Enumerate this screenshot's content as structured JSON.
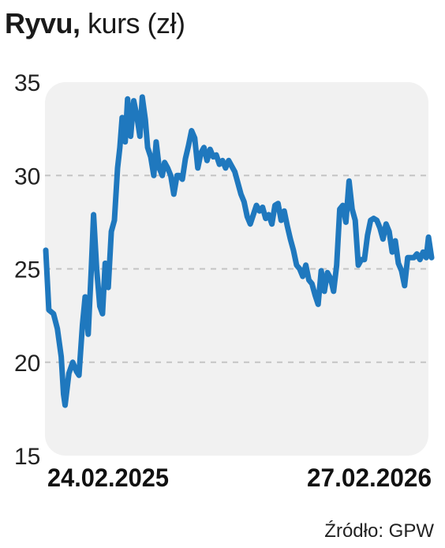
{
  "header": {
    "title_bold": "Ryvu,",
    "title_rest": " kurs (zł)"
  },
  "footer": {
    "source": "Źródło: GPW"
  },
  "colors": {
    "line": "#1f78be",
    "panel": "#f1f1f1",
    "grid": "#c4c4c4"
  },
  "chart_data": {
    "type": "line",
    "title": "Ryvu, kurs (zł)",
    "xlabel": "",
    "ylabel": "",
    "ylim": [
      15,
      35
    ],
    "yticks": [
      15,
      20,
      25,
      30,
      35
    ],
    "x_tick_labels": [
      "24.02.2025",
      "27.02.2026"
    ],
    "x_range": [
      0,
      100
    ],
    "grid": "horizontal dashed",
    "series": [
      {
        "values": [
          [
            0.0,
            26.0
          ],
          [
            0.8,
            22.8
          ],
          [
            2.0,
            22.6
          ],
          [
            3.0,
            21.8
          ],
          [
            4.0,
            20.3
          ],
          [
            4.6,
            18.3
          ],
          [
            5.0,
            17.7
          ],
          [
            6.0,
            19.4
          ],
          [
            7.0,
            20.0
          ],
          [
            8.0,
            19.5
          ],
          [
            8.6,
            19.3
          ],
          [
            9.5,
            22.0
          ],
          [
            10.2,
            23.5
          ],
          [
            11.0,
            21.5
          ],
          [
            11.8,
            25.0
          ],
          [
            12.4,
            27.9
          ],
          [
            13.2,
            25.0
          ],
          [
            14.0,
            23.0
          ],
          [
            14.7,
            22.6
          ],
          [
            15.4,
            25.3
          ],
          [
            16.2,
            24.0
          ],
          [
            17.0,
            27.0
          ],
          [
            17.8,
            27.6
          ],
          [
            18.6,
            30.4
          ],
          [
            19.2,
            31.5
          ],
          [
            19.8,
            33.1
          ],
          [
            20.6,
            31.8
          ],
          [
            21.2,
            34.1
          ],
          [
            22.0,
            32.1
          ],
          [
            22.8,
            34.0
          ],
          [
            23.6,
            33.2
          ],
          [
            24.4,
            32.1
          ],
          [
            25.0,
            34.2
          ],
          [
            25.8,
            33.0
          ],
          [
            26.4,
            31.5
          ],
          [
            27.2,
            31.0
          ],
          [
            28.0,
            30.0
          ],
          [
            28.6,
            31.8
          ],
          [
            29.4,
            30.4
          ],
          [
            30.2,
            30.0
          ],
          [
            30.8,
            30.7
          ],
          [
            31.6,
            30.4
          ],
          [
            32.4,
            30.0
          ],
          [
            33.2,
            29.0
          ],
          [
            34.0,
            30.0
          ],
          [
            34.6,
            30.0
          ],
          [
            35.4,
            29.8
          ],
          [
            36.2,
            30.9
          ],
          [
            37.0,
            31.6
          ],
          [
            37.8,
            32.4
          ],
          [
            38.6,
            32.0
          ],
          [
            39.4,
            30.4
          ],
          [
            40.2,
            31.2
          ],
          [
            41.0,
            31.5
          ],
          [
            41.8,
            30.8
          ],
          [
            42.6,
            31.4
          ],
          [
            43.4,
            31.0
          ],
          [
            44.2,
            31.1
          ],
          [
            45.0,
            30.6
          ],
          [
            45.8,
            30.8
          ],
          [
            46.6,
            30.4
          ],
          [
            47.4,
            30.8
          ],
          [
            48.2,
            30.5
          ],
          [
            49.0,
            30.2
          ],
          [
            49.8,
            29.6
          ],
          [
            50.6,
            29.0
          ],
          [
            51.4,
            28.6
          ],
          [
            52.2,
            27.8
          ],
          [
            53.0,
            27.4
          ],
          [
            53.8,
            27.9
          ],
          [
            54.6,
            28.4
          ],
          [
            55.4,
            28.1
          ],
          [
            56.2,
            28.3
          ],
          [
            57.0,
            27.7
          ],
          [
            57.8,
            27.9
          ],
          [
            58.6,
            27.4
          ],
          [
            59.4,
            28.4
          ],
          [
            60.2,
            28.5
          ],
          [
            61.0,
            27.6
          ],
          [
            61.8,
            28.1
          ],
          [
            62.6,
            27.3
          ],
          [
            63.4,
            26.6
          ],
          [
            64.2,
            26.0
          ],
          [
            65.0,
            25.2
          ],
          [
            65.8,
            25.0
          ],
          [
            66.6,
            24.6
          ],
          [
            67.4,
            25.2
          ],
          [
            68.2,
            24.4
          ],
          [
            69.0,
            24.2
          ],
          [
            69.8,
            23.6
          ],
          [
            70.6,
            23.1
          ],
          [
            71.4,
            24.9
          ],
          [
            72.2,
            23.8
          ],
          [
            73.0,
            24.8
          ],
          [
            73.8,
            24.5
          ],
          [
            74.6,
            23.8
          ],
          [
            75.4,
            25.2
          ],
          [
            76.2,
            28.2
          ],
          [
            77.0,
            28.4
          ],
          [
            77.8,
            27.5
          ],
          [
            78.6,
            29.7
          ],
          [
            79.4,
            28.2
          ],
          [
            80.2,
            27.6
          ],
          [
            81.0,
            25.2
          ],
          [
            81.8,
            25.5
          ],
          [
            82.6,
            25.5
          ],
          [
            83.4,
            26.8
          ],
          [
            84.2,
            27.6
          ],
          [
            85.0,
            27.7
          ],
          [
            85.8,
            27.6
          ],
          [
            86.6,
            27.2
          ],
          [
            87.4,
            26.6
          ],
          [
            88.2,
            27.4
          ],
          [
            89.0,
            27.0
          ],
          [
            89.8,
            25.9
          ],
          [
            90.6,
            26.5
          ],
          [
            91.4,
            25.3
          ],
          [
            92.2,
            24.9
          ],
          [
            93.0,
            24.1
          ],
          [
            93.8,
            25.6
          ],
          [
            94.6,
            25.6
          ],
          [
            95.4,
            25.6
          ],
          [
            96.2,
            25.8
          ],
          [
            97.0,
            25.5
          ],
          [
            97.8,
            25.9
          ],
          [
            98.6,
            25.6
          ],
          [
            99.2,
            26.7
          ],
          [
            100.0,
            25.6
          ]
        ]
      }
    ]
  }
}
